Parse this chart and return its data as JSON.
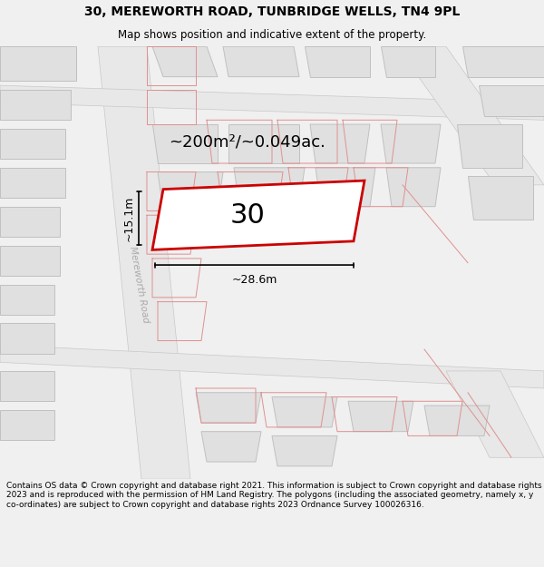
{
  "title": "30, MEREWORTH ROAD, TUNBRIDGE WELLS, TN4 9PL",
  "subtitle": "Map shows position and indicative extent of the property.",
  "footer": "Contains OS data © Crown copyright and database right 2021. This information is subject to Crown copyright and database rights 2023 and is reproduced with the permission of HM Land Registry. The polygons (including the associated geometry, namely x, y co-ordinates) are subject to Crown copyright and database rights 2023 Ordnance Survey 100026316.",
  "area_label": "~200m²/~0.049ac.",
  "width_label": "~28.6m",
  "height_label": "~15.1m",
  "number_label": "30",
  "road_label": "Mereworth Road",
  "bg_color": "#f0f0f0",
  "map_bg": "#ffffff",
  "building_color": "#e0e0e0",
  "building_stroke": "#c0c0c0",
  "property_stroke": "#cc0000",
  "property_lw": 2.0,
  "red_line_color": "#e09090",
  "road_gray": "#d0d0d0",
  "road_edge": "#b0b0b0",
  "title_fontsize": 10,
  "subtitle_fontsize": 8.5,
  "footer_fontsize": 6.5,
  "area_fontsize": 13,
  "dim_fontsize": 9,
  "road_label_fontsize": 7.5,
  "number_fontsize": 22
}
